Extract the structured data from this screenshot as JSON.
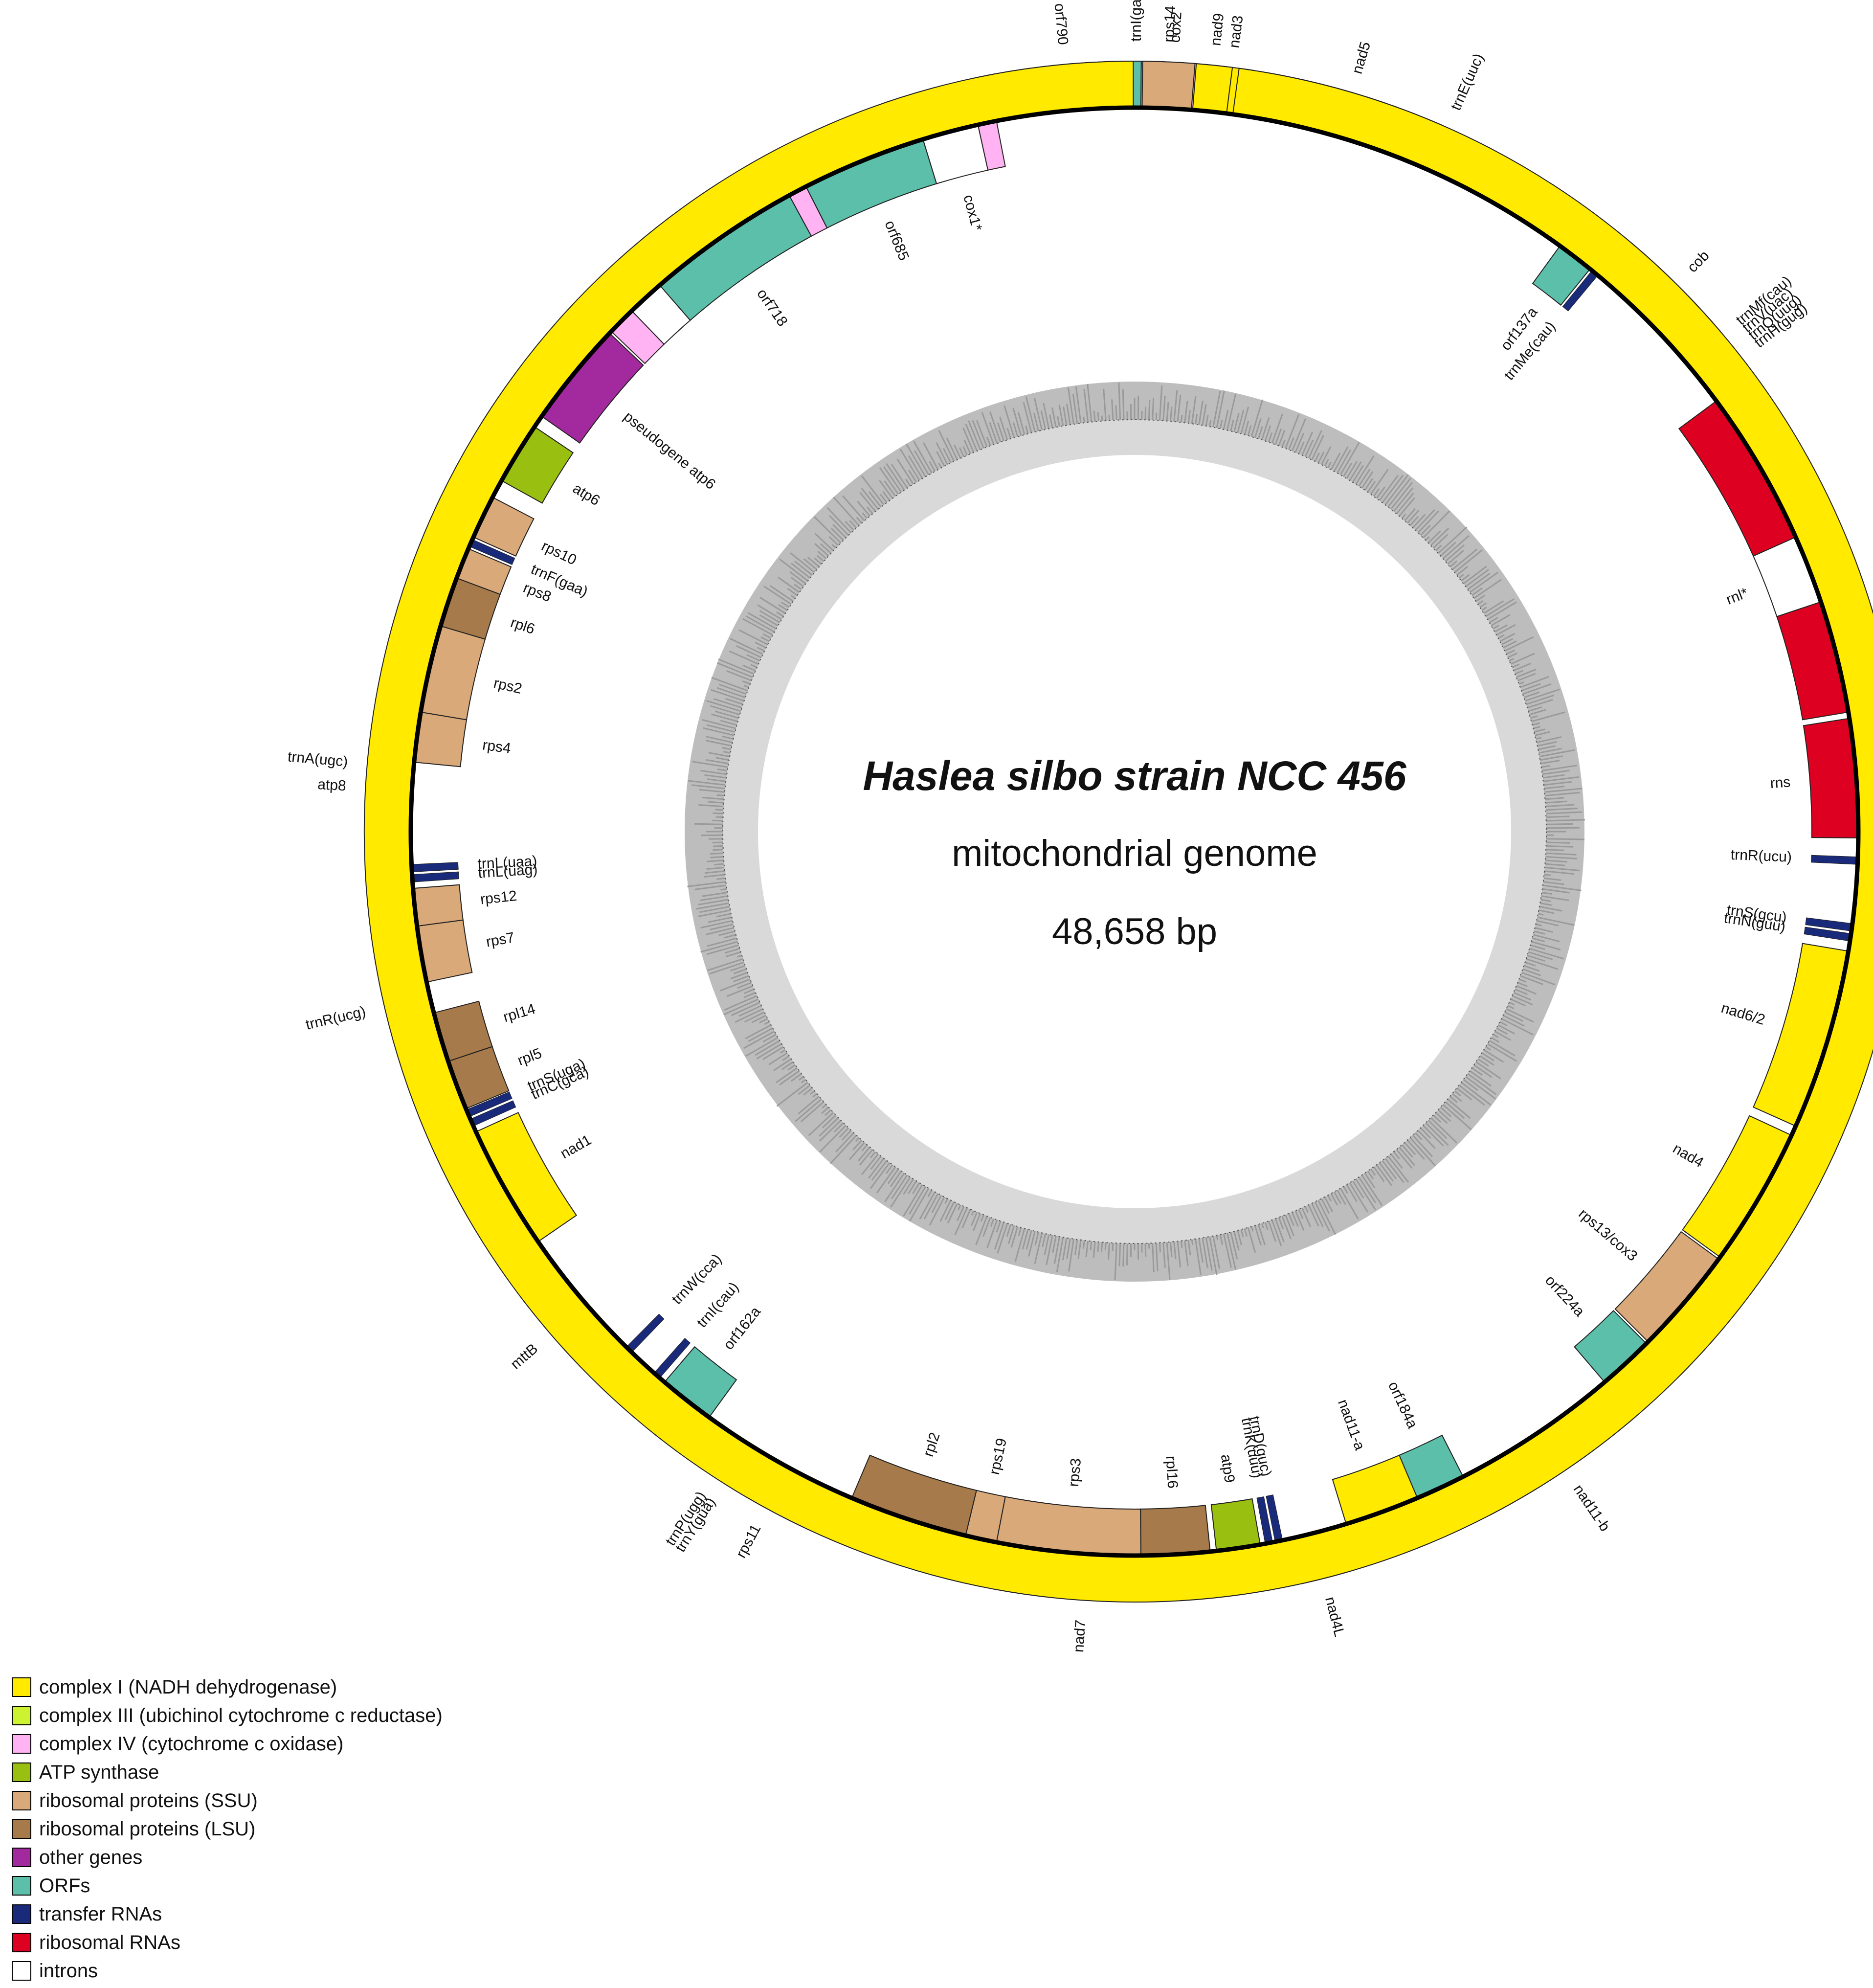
{
  "title": {
    "organism": "Haslea silbo strain NCC 456",
    "subtitle": "mitochondrial genome",
    "size": "48,658 bp"
  },
  "colors": {
    "complex_i": "#FFEA00",
    "complex_iii": "#CCF230",
    "complex_iv": "#FFB3F2",
    "atp": "#99BF10",
    "ssu": "#D9A97A",
    "lsu": "#A67A4A",
    "other": "#A32A9E",
    "orf": "#5BBFAA",
    "trna": "#1A2A7A",
    "rrna": "#DD0020",
    "intron": "#FFFFFF"
  },
  "genes": [
    {
      "name": "trnI(gau)",
      "cat": "trna",
      "start": 0,
      "end": 0.35,
      "strand": "out",
      "label": "trnI(gau)"
    },
    {
      "name": "cox2",
      "cat": "complex_iv",
      "start": 0.5,
      "end": 5.5,
      "strand": "out",
      "label": "cox2"
    },
    {
      "name": "nad3",
      "cat": "complex_i",
      "start": 5.6,
      "end": 9.0,
      "strand": "out",
      "label": "nad3"
    },
    {
      "name": "nad5",
      "cat": "complex_i",
      "start": 9.3,
      "end": 23.5,
      "strand": "out",
      "label": "nad5"
    },
    {
      "name": "trnE(uuc)",
      "cat": "trna",
      "start": 23.7,
      "end": 24.3,
      "strand": "out",
      "label": "trnE(uuc)"
    },
    {
      "name": "orf137a",
      "cat": "orf",
      "start": 36.0,
      "end": 39.0,
      "strand": "in",
      "label": "orf137a"
    },
    {
      "name": "trnMe(cau)",
      "cat": "trna",
      "start": 39.2,
      "end": 39.8,
      "strand": "in",
      "label": "trnMe(cau)"
    },
    {
      "name": "cob",
      "cat": "complex_iii",
      "start": 40.0,
      "end": 49.5,
      "strand": "out",
      "label": "cob"
    },
    {
      "name": "trnMf(cau)",
      "cat": "trna",
      "start": 49.6,
      "end": 50.2,
      "strand": "out",
      "label": "trnMf(cau)"
    },
    {
      "name": "trnV(uac)",
      "cat": "trna",
      "start": 50.3,
      "end": 50.9,
      "strand": "out",
      "label": "trnV(uac)"
    },
    {
      "name": "trnQ(uug)",
      "cat": "trna",
      "start": 51.0,
      "end": 51.6,
      "strand": "out",
      "label": "trnQ(uug)"
    },
    {
      "name": "trnH(gug)",
      "cat": "trna",
      "start": 51.7,
      "end": 52.3,
      "strand": "out",
      "label": "trnH(gug)"
    },
    {
      "name": "rnl-1",
      "cat": "rrna",
      "start": 53.5,
      "end": 66.0,
      "strand": "in",
      "label": ""
    },
    {
      "name": "rnl-intron",
      "cat": "intron",
      "start": 66.0,
      "end": 71.5,
      "strand": "in",
      "label": "rnl*"
    },
    {
      "name": "rnl-2",
      "cat": "rrna",
      "start": 71.5,
      "end": 80.5,
      "strand": "in",
      "label": ""
    },
    {
      "name": "rns",
      "cat": "rrna",
      "start": 81.0,
      "end": 90.5,
      "strand": "in",
      "label": "rns"
    },
    {
      "name": "trnR(ucu)",
      "cat": "trna",
      "start": 92.0,
      "end": 92.6,
      "strand": "in",
      "label": "trnR(ucu)"
    },
    {
      "name": "trnS(gcu)",
      "cat": "trna",
      "start": 97.3,
      "end": 97.9,
      "strand": "in",
      "label": "trnS(gcu)"
    },
    {
      "name": "trnN(guu)",
      "cat": "trna",
      "start": 98.1,
      "end": 98.7,
      "strand": "in",
      "label": "trnN(guu)"
    },
    {
      "name": "nad6/2",
      "cat": "complex_i",
      "start": 99.5,
      "end": 114.0,
      "strand": "in",
      "label": "nad6/2"
    },
    {
      "name": "nad4",
      "cat": "complex_i",
      "start": 114.8,
      "end": 126.0,
      "strand": "in",
      "label": "nad4"
    },
    {
      "name": "rps13/cox3",
      "cat": "ssu",
      "start": 126.2,
      "end": 134.8,
      "strand": "in",
      "label": "rps13/cox3"
    },
    {
      "name": "orf224a",
      "cat": "orf",
      "start": 135.0,
      "end": 139.5,
      "strand": "in",
      "label": "orf224a"
    },
    {
      "name": "nad11-b",
      "cat": "complex_i",
      "start": 139.5,
      "end": 152.5,
      "strand": "out",
      "label": "nad11-b"
    },
    {
      "name": "orf184a",
      "cat": "orf",
      "start": 153.0,
      "end": 157.0,
      "strand": "in",
      "label": "orf184a"
    },
    {
      "name": "nad11-a",
      "cat": "complex_i",
      "start": 157.0,
      "end": 163.0,
      "strand": "in",
      "label": "nad11-a"
    },
    {
      "name": "nad4L",
      "cat": "complex_i",
      "start": 164.0,
      "end": 167.5,
      "strand": "out",
      "label": "nad4L"
    },
    {
      "name": "trnD(guc)",
      "cat": "trna",
      "start": 168.2,
      "end": 168.8,
      "strand": "in",
      "label": "trnD(guc)"
    },
    {
      "name": "trnK(uuu)",
      "cat": "trna",
      "start": 169.0,
      "end": 169.6,
      "strand": "in",
      "label": "trnK(uuu)"
    },
    {
      "name": "atp9",
      "cat": "atp",
      "start": 170.0,
      "end": 173.5,
      "strand": "in",
      "label": "atp9"
    },
    {
      "name": "rpl16",
      "cat": "lsu",
      "start": 174.0,
      "end": 179.5,
      "strand": "in",
      "label": "rpl16"
    },
    {
      "name": "rps3",
      "cat": "ssu",
      "start": 179.5,
      "end": 191.0,
      "strand": "in",
      "label": "rps3"
    },
    {
      "name": "rps19",
      "cat": "ssu",
      "start": 191.0,
      "end": 193.5,
      "strand": "in",
      "label": "rps19"
    },
    {
      "name": "rpl2",
      "cat": "lsu",
      "start": 193.5,
      "end": 203.0,
      "strand": "in",
      "label": "rpl2"
    },
    {
      "name": "rps11",
      "cat": "ssu",
      "start": 205.5,
      "end": 211.5,
      "strand": "out",
      "label": "rps11"
    },
    {
      "name": "trnY(gua)",
      "cat": "trna",
      "start": 212.0,
      "end": 212.6,
      "strand": "out",
      "label": "trnY(gua)"
    },
    {
      "name": "trnP(ugg)",
      "cat": "trna",
      "start": 212.8,
      "end": 213.4,
      "strand": "out",
      "label": "trnP(ugg)"
    },
    {
      "name": "orf162a",
      "cat": "orf",
      "start": 216.0,
      "end": 220.5,
      "strand": "in",
      "label": "orf162a"
    },
    {
      "name": "trnI(cau)",
      "cat": "trna",
      "start": 221.0,
      "end": 221.6,
      "strand": "in",
      "label": "trnI(cau)"
    },
    {
      "name": "trnW(cca)",
      "cat": "trna",
      "start": 224.0,
      "end": 224.6,
      "strand": "in",
      "label": "trnW(cca)"
    },
    {
      "name": "mttB",
      "cat": "other",
      "start": 226.0,
      "end": 232.5,
      "strand": "out",
      "label": "mttB"
    },
    {
      "name": "nad1",
      "cat": "complex_i",
      "start": 235.5,
      "end": 245.5,
      "strand": "in",
      "label": "nad1"
    },
    {
      "name": "trnC(gca)",
      "cat": "trna",
      "start": 246.0,
      "end": 246.6,
      "strand": "in",
      "label": "trnC(gca)"
    },
    {
      "name": "trnS(uga)",
      "cat": "trna",
      "start": 246.8,
      "end": 247.4,
      "strand": "in",
      "label": "trnS(uga)"
    },
    {
      "name": "rpl5",
      "cat": "lsu",
      "start": 247.5,
      "end": 251.5,
      "strand": "in",
      "label": "rpl5"
    },
    {
      "name": "rpl14",
      "cat": "lsu",
      "start": 251.5,
      "end": 255.5,
      "strand": "in",
      "label": "rpl14"
    },
    {
      "name": "trnR(ucg)",
      "cat": "trna",
      "start": 256.5,
      "end": 257.1,
      "strand": "out",
      "label": "trnR(ucg)"
    },
    {
      "name": "rps7",
      "cat": "ssu",
      "start": 258.0,
      "end": 262.5,
      "strand": "in",
      "label": "rps7"
    },
    {
      "name": "rps12",
      "cat": "ssu",
      "start": 262.5,
      "end": 265.5,
      "strand": "in",
      "label": "rps12"
    },
    {
      "name": "trnL(uag)",
      "cat": "trna",
      "start": 266.0,
      "end": 266.6,
      "strand": "in",
      "label": "trnL(uag)"
    },
    {
      "name": "trnL(uaa)",
      "cat": "trna",
      "start": 266.8,
      "end": 267.4,
      "strand": "in",
      "label": "trnL(uaa)"
    },
    {
      "name": "atp8",
      "cat": "atp",
      "start": 272.0,
      "end": 274.5,
      "strand": "out",
      "label": "atp8"
    },
    {
      "name": "trnA(ugc)",
      "cat": "trna",
      "start": 274.7,
      "end": 275.3,
      "strand": "out",
      "label": "trnA(ugc)"
    },
    {
      "name": "rps4",
      "cat": "ssu",
      "start": 275.5,
      "end": 279.5,
      "strand": "in",
      "label": "rps4"
    },
    {
      "name": "rps2",
      "cat": "ssu",
      "start": 279.5,
      "end": 286.5,
      "strand": "in",
      "label": "rps2"
    },
    {
      "name": "rpl6",
      "cat": "lsu",
      "start": 286.5,
      "end": 290.5,
      "strand": "in",
      "label": "rpl6"
    },
    {
      "name": "rps8",
      "cat": "ssu",
      "start": 290.5,
      "end": 293.0,
      "strand": "in",
      "label": "rps8"
    },
    {
      "name": "trnF(gaa)",
      "cat": "trna",
      "start": 293.2,
      "end": 293.8,
      "strand": "in",
      "label": "trnF(gaa)"
    },
    {
      "name": "rps10",
      "cat": "ssu",
      "start": 294.0,
      "end": 297.5,
      "strand": "in",
      "label": "rps10"
    },
    {
      "name": "atp6",
      "cat": "atp",
      "start": 299.0,
      "end": 304.0,
      "strand": "in",
      "label": "atp6"
    },
    {
      "name": "pseudogene atp6",
      "cat": "other",
      "start": 305.0,
      "end": 313.5,
      "strand": "in",
      "label": "pseudogene atp6"
    },
    {
      "name": "cox1-ex1",
      "cat": "complex_iv",
      "start": 313.7,
      "end": 316.0,
      "strand": "in",
      "label": ""
    },
    {
      "name": "cox1-int1",
      "cat": "intron",
      "start": 316.0,
      "end": 319.0,
      "strand": "in",
      "label": ""
    },
    {
      "name": "orf718",
      "cat": "orf",
      "start": 319.0,
      "end": 331.5,
      "strand": "in",
      "label": "orf718"
    },
    {
      "name": "cox1-ex2",
      "cat": "complex_iv",
      "start": 331.5,
      "end": 333.0,
      "strand": "in",
      "label": ""
    },
    {
      "name": "orf685",
      "cat": "orf",
      "start": 333.0,
      "end": 343.0,
      "strand": "in",
      "label": "orf685"
    },
    {
      "name": "cox1-int2",
      "cat": "intron",
      "start": 343.0,
      "end": 347.5,
      "strand": "in",
      "label": "cox1*"
    },
    {
      "name": "cox1-ex3",
      "cat": "complex_iv",
      "start": 347.5,
      "end": 349.0,
      "strand": "in",
      "label": ""
    },
    {
      "name": "orf790",
      "cat": "orf",
      "start": 349.0,
      "end": 360.5,
      "strand": "out",
      "label": "orf790"
    },
    {
      "name": "rps14",
      "cat": "ssu",
      "start": 360.6,
      "end": 364.5,
      "strand": "out",
      "label": "rps14"
    },
    {
      "name": "nad9",
      "cat": "complex_i",
      "start": 364.6,
      "end": 367.3,
      "strand": "out",
      "label": "nad9"
    },
    {
      "name": "nad7",
      "cat": "complex_i",
      "start": 367.8,
      "end": 359.9,
      "strand": "out",
      "label": "nad7"
    }
  ],
  "legend": [
    {
      "key": "complex_i",
      "label": "complex I (NADH dehydrogenase)"
    },
    {
      "key": "complex_iii",
      "label": "complex III (ubichinol cytochrome c reductase)"
    },
    {
      "key": "complex_iv",
      "label": "complex IV (cytochrome c oxidase)"
    },
    {
      "key": "atp",
      "label": "ATP synthase"
    },
    {
      "key": "ssu",
      "label": "ribosomal proteins (SSU)"
    },
    {
      "key": "lsu",
      "label": "ribosomal proteins (LSU)"
    },
    {
      "key": "other",
      "label": "other genes"
    },
    {
      "key": "orf",
      "label": "ORFs"
    },
    {
      "key": "trna",
      "label": "transfer RNAs"
    },
    {
      "key": "rrna",
      "label": "ribosomal RNAs"
    },
    {
      "key": "intron",
      "label": "introns"
    }
  ]
}
